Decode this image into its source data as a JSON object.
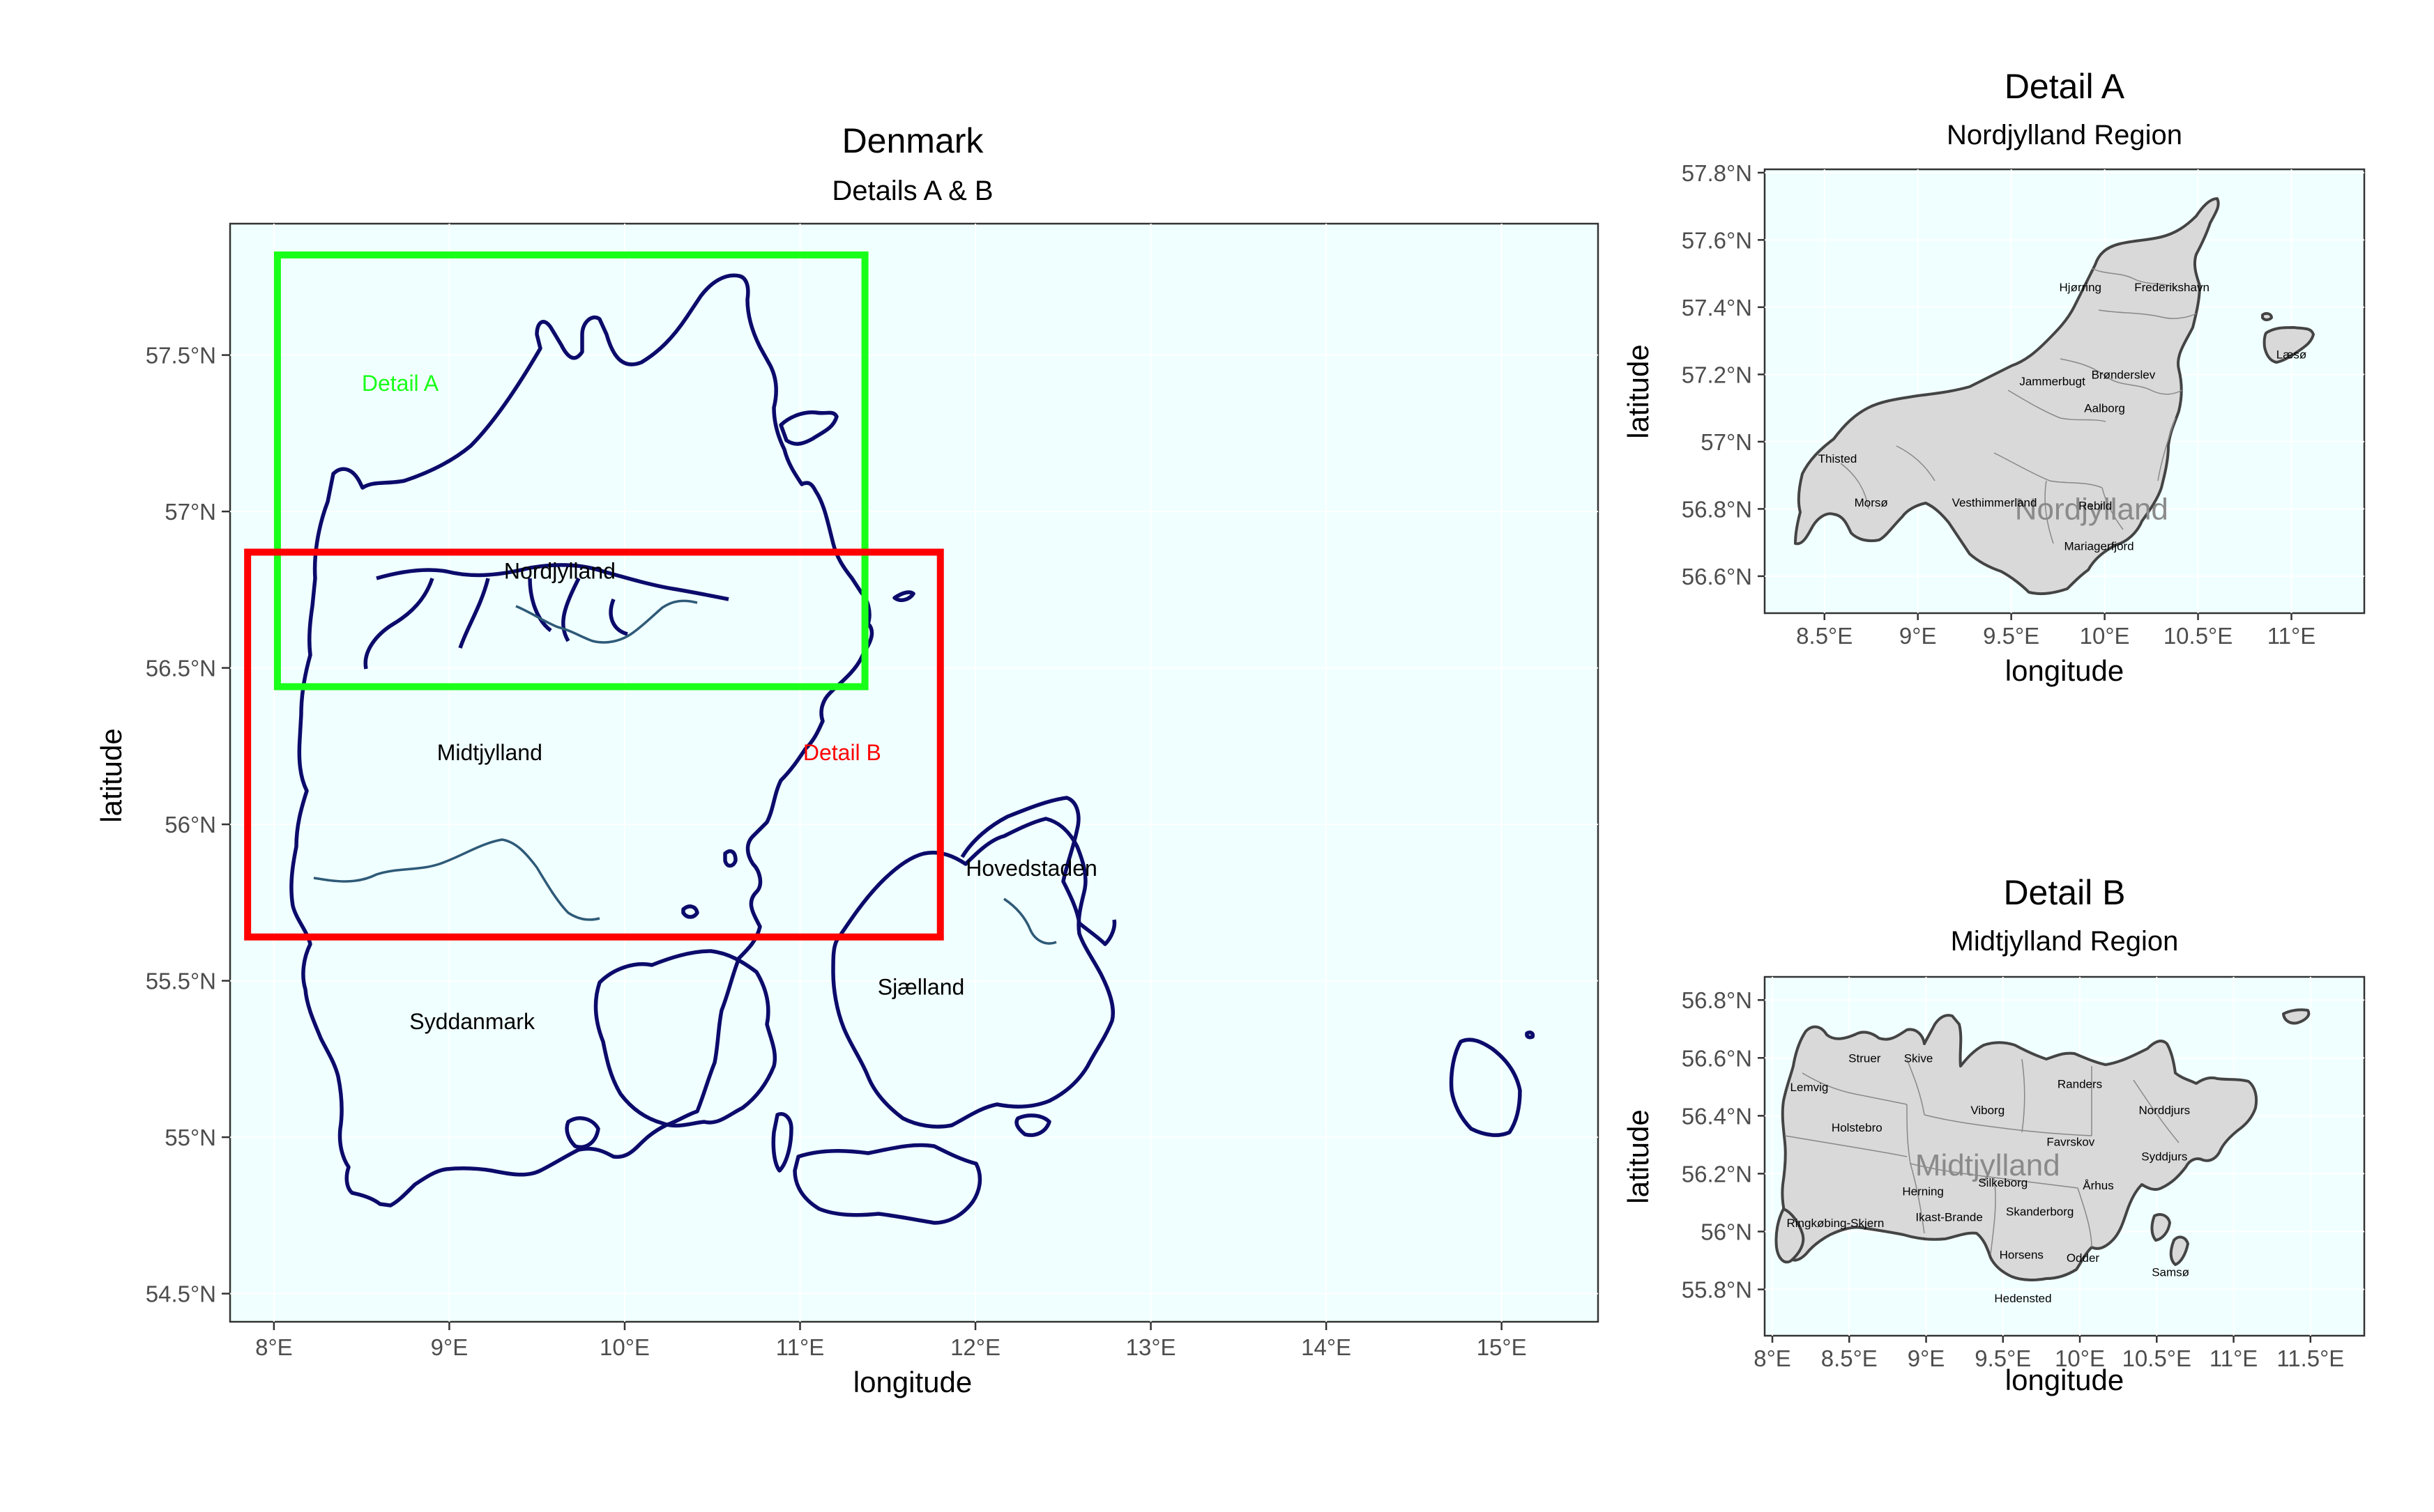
{
  "main_map": {
    "title": "Denmark",
    "subtitle": "Details A & B",
    "xlabel": "longitude",
    "ylabel": "latitude",
    "xlim": [
      7.75,
      15.55
    ],
    "ylim": [
      54.41,
      57.92
    ],
    "x_ticks": [
      {
        "value": 8,
        "label": "8°E"
      },
      {
        "value": 9,
        "label": "9°E"
      },
      {
        "value": 10,
        "label": "10°E"
      },
      {
        "value": 11,
        "label": "11°E"
      },
      {
        "value": 12,
        "label": "12°E"
      },
      {
        "value": 13,
        "label": "13°E"
      },
      {
        "value": 14,
        "label": "14°E"
      },
      {
        "value": 15,
        "label": "15°E"
      }
    ],
    "y_ticks": [
      {
        "value": 54.5,
        "label": "54.5°N"
      },
      {
        "value": 55,
        "label": "55°N"
      },
      {
        "value": 55.5,
        "label": "55.5°N"
      },
      {
        "value": 56,
        "label": "56°N"
      },
      {
        "value": 56.5,
        "label": "56.5°N"
      },
      {
        "value": 57,
        "label": "57°N"
      },
      {
        "value": 57.5,
        "label": "57.5°N"
      }
    ],
    "region_labels": [
      {
        "name": "Nordjylland",
        "lon": 9.63,
        "lat": 56.81
      },
      {
        "name": "Midtjylland",
        "lon": 9.23,
        "lat": 56.23
      },
      {
        "name": "Hovedstaden",
        "lon": 12.32,
        "lat": 55.86
      },
      {
        "name": "Sjælland",
        "lon": 11.69,
        "lat": 55.48
      },
      {
        "name": "Syddanmark",
        "lon": 9.13,
        "lat": 55.37
      }
    ],
    "detail_boxes": [
      {
        "label": "Detail A",
        "color": "#1aff1a",
        "lon": [
          8.02,
          11.37
        ],
        "lat": [
          56.44,
          57.82
        ],
        "label_lon": 8.72,
        "label_lat": 57.41
      },
      {
        "label": "Detail B",
        "color": "#ff0000",
        "lon": [
          7.85,
          11.8
        ],
        "lat": [
          55.64,
          56.87
        ],
        "label_lon": 11.24,
        "label_lat": 56.23
      }
    ]
  },
  "detail_a": {
    "title": "Detail A",
    "subtitle": "Nordjylland Region",
    "xlabel": "longitude",
    "ylabel": "latitude",
    "xlim": [
      8.18,
      11.39
    ],
    "ylim": [
      56.49,
      57.81
    ],
    "x_ticks": [
      {
        "value": 8.5,
        "label": "8.5°E"
      },
      {
        "value": 9,
        "label": "9°E"
      },
      {
        "value": 9.5,
        "label": "9.5°E"
      },
      {
        "value": 10,
        "label": "10°E"
      },
      {
        "value": 10.5,
        "label": "10.5°E"
      },
      {
        "value": 11,
        "label": "11°E"
      }
    ],
    "y_ticks": [
      {
        "value": 56.6,
        "label": "56.6°N"
      },
      {
        "value": 56.8,
        "label": "56.8°N"
      },
      {
        "value": 57,
        "label": "57°N"
      },
      {
        "value": 57.2,
        "label": "57.2°N"
      },
      {
        "value": 57.4,
        "label": "57.4°N"
      },
      {
        "value": 57.6,
        "label": "57.6°N"
      },
      {
        "value": 57.8,
        "label": "57.8°N"
      }
    ],
    "region_watermark": {
      "name": "Nordjylland",
      "lon": 9.93,
      "lat": 56.8
    },
    "municipalities": [
      {
        "name": "Hjørring",
        "lon": 9.87,
        "lat": 57.46
      },
      {
        "name": "Frederikshavn",
        "lon": 10.36,
        "lat": 57.46
      },
      {
        "name": "Jammerbugt",
        "lon": 9.72,
        "lat": 57.18
      },
      {
        "name": "Brønderslev",
        "lon": 10.1,
        "lat": 57.2
      },
      {
        "name": "Aalborg",
        "lon": 10.0,
        "lat": 57.1
      },
      {
        "name": "Thisted",
        "lon": 8.57,
        "lat": 56.95
      },
      {
        "name": "Morsø",
        "lon": 8.75,
        "lat": 56.82
      },
      {
        "name": "Vesthimmerland",
        "lon": 9.41,
        "lat": 56.82
      },
      {
        "name": "Rebild",
        "lon": 9.95,
        "lat": 56.81
      },
      {
        "name": "Mariagerfjord",
        "lon": 9.97,
        "lat": 56.69
      },
      {
        "name": "Læsø",
        "lon": 11.0,
        "lat": 57.26
      }
    ]
  },
  "detail_b": {
    "title": "Detail B",
    "subtitle": "Midtjylland Region",
    "xlabel": "longitude",
    "ylabel": "latitude",
    "xlim": [
      7.95,
      11.85
    ],
    "ylim": [
      55.64,
      56.88
    ],
    "x_ticks": [
      {
        "value": 8,
        "label": "8°E"
      },
      {
        "value": 8.5,
        "label": "8.5°E"
      },
      {
        "value": 9,
        "label": "9°E"
      },
      {
        "value": 9.5,
        "label": "9.5°E"
      },
      {
        "value": 10,
        "label": "10°E"
      },
      {
        "value": 10.5,
        "label": "10.5°E"
      },
      {
        "value": 11,
        "label": "11°E"
      },
      {
        "value": 11.5,
        "label": "11.5°E"
      }
    ],
    "y_ticks": [
      {
        "value": 55.8,
        "label": "55.8°N"
      },
      {
        "value": 56,
        "label": "56°N"
      },
      {
        "value": 56.2,
        "label": "56.2°N"
      },
      {
        "value": 56.4,
        "label": "56.4°N"
      },
      {
        "value": 56.6,
        "label": "56.6°N"
      },
      {
        "value": 56.8,
        "label": "56.8°N"
      }
    ],
    "region_watermark": {
      "name": "Midtjylland",
      "lon": 9.4,
      "lat": 56.23
    },
    "municipalities": [
      {
        "name": "Struer",
        "lon": 8.6,
        "lat": 56.6
      },
      {
        "name": "Skive",
        "lon": 8.95,
        "lat": 56.6
      },
      {
        "name": "Lemvig",
        "lon": 8.24,
        "lat": 56.5
      },
      {
        "name": "Randers",
        "lon": 10.0,
        "lat": 56.51
      },
      {
        "name": "Viborg",
        "lon": 9.4,
        "lat": 56.42
      },
      {
        "name": "Norddjurs",
        "lon": 10.55,
        "lat": 56.42
      },
      {
        "name": "Holstebro",
        "lon": 8.55,
        "lat": 56.36
      },
      {
        "name": "Favrskov",
        "lon": 9.94,
        "lat": 56.31
      },
      {
        "name": "Syddjurs",
        "lon": 10.55,
        "lat": 56.26
      },
      {
        "name": "Herning",
        "lon": 8.98,
        "lat": 56.14
      },
      {
        "name": "Silkeborg",
        "lon": 9.5,
        "lat": 56.17
      },
      {
        "name": "Århus",
        "lon": 10.12,
        "lat": 56.16
      },
      {
        "name": "Ringkøbing-Skjern",
        "lon": 8.41,
        "lat": 56.03
      },
      {
        "name": "Ikast-Brande",
        "lon": 9.15,
        "lat": 56.05
      },
      {
        "name": "Skanderborg",
        "lon": 9.74,
        "lat": 56.07
      },
      {
        "name": "Horsens",
        "lon": 9.62,
        "lat": 55.92
      },
      {
        "name": "Odder",
        "lon": 10.02,
        "lat": 55.91
      },
      {
        "name": "Samsø",
        "lon": 10.59,
        "lat": 55.86
      },
      {
        "name": "Hedensted",
        "lon": 9.63,
        "lat": 55.77
      }
    ]
  }
}
